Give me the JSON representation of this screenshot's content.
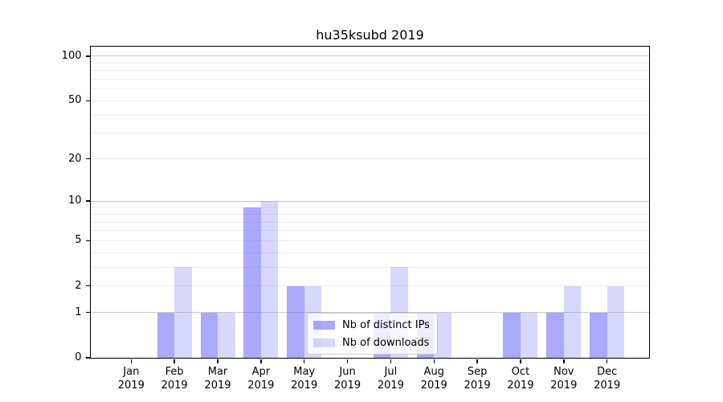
{
  "chart_data": {
    "type": "bar",
    "title": "hu35ksubd 2019",
    "categories": [
      "Jan",
      "Feb",
      "Mar",
      "Apr",
      "May",
      "Jun",
      "Jul",
      "Aug",
      "Sep",
      "Oct",
      "Nov",
      "Dec"
    ],
    "category_year": "2019",
    "series": [
      {
        "name": "Nb of distinct IPs",
        "color": "rgba(100,98,250,0.55)",
        "values": [
          0,
          1,
          1,
          9,
          2,
          0,
          1,
          1,
          0,
          1,
          1,
          1
        ]
      },
      {
        "name": "Nb of downloads",
        "color": "rgba(100,98,250,0.25)",
        "values": [
          0,
          3,
          1,
          10,
          2,
          0,
          3,
          1,
          0,
          1,
          2,
          2
        ]
      }
    ],
    "yscale": "log1p",
    "ylim": [
      0,
      116
    ],
    "y_tick_values": [
      0,
      1,
      2,
      5,
      10,
      20,
      50,
      100
    ],
    "gridlines": {
      "major": [
        1,
        10,
        100
      ],
      "minor": [
        2,
        3,
        4,
        5,
        6,
        7,
        8,
        9,
        20,
        30,
        40,
        50,
        60,
        70,
        80,
        90
      ]
    },
    "grid": true,
    "legend_position": "lower center",
    "colors": {
      "major_grid": "#c9c9c9",
      "minor_grid": "#ededed",
      "axis": "#000000",
      "legend_border": "#cccccc"
    }
  }
}
